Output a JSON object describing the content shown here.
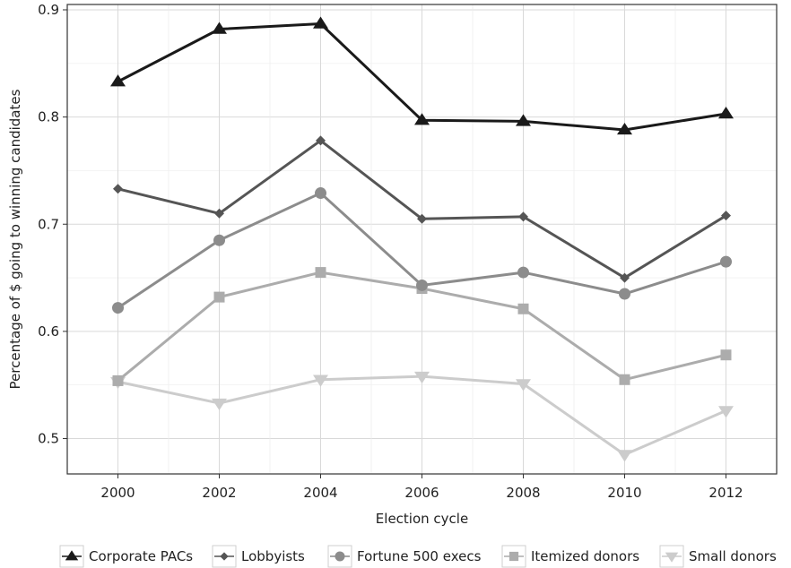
{
  "chart_data": {
    "type": "line",
    "title": "",
    "xlabel": "Election cycle",
    "ylabel": "Percentage of $ going to winning candidates",
    "x": [
      2000,
      2002,
      2004,
      2006,
      2008,
      2010,
      2012
    ],
    "xlim": [
      1999,
      2013
    ],
    "ylim": [
      0.467,
      0.905
    ],
    "yticks": [
      0.5,
      0.6,
      0.7,
      0.8,
      0.9
    ],
    "grid": true,
    "legend_position": "bottom",
    "series": [
      {
        "name": "Corporate PACs",
        "values": [
          0.833,
          0.882,
          0.887,
          0.797,
          0.796,
          0.788,
          0.803
        ],
        "color": "#1a1a1a",
        "marker": "triangle-up"
      },
      {
        "name": "Lobbyists",
        "values": [
          0.733,
          0.71,
          0.778,
          0.705,
          0.707,
          0.65,
          0.708
        ],
        "color": "#555555",
        "marker": "diamond"
      },
      {
        "name": "Fortune 500 execs",
        "values": [
          0.622,
          0.685,
          0.729,
          0.643,
          0.655,
          0.635,
          0.665
        ],
        "color": "#8c8c8c",
        "marker": "circle"
      },
      {
        "name": "Itemized donors",
        "values": [
          0.554,
          0.632,
          0.655,
          0.64,
          0.621,
          0.555,
          0.578
        ],
        "color": "#acacac",
        "marker": "square"
      },
      {
        "name": "Small donors",
        "values": [
          0.553,
          0.533,
          0.555,
          0.558,
          0.551,
          0.485,
          0.526
        ],
        "color": "#cccccc",
        "marker": "triangle-down"
      }
    ]
  }
}
